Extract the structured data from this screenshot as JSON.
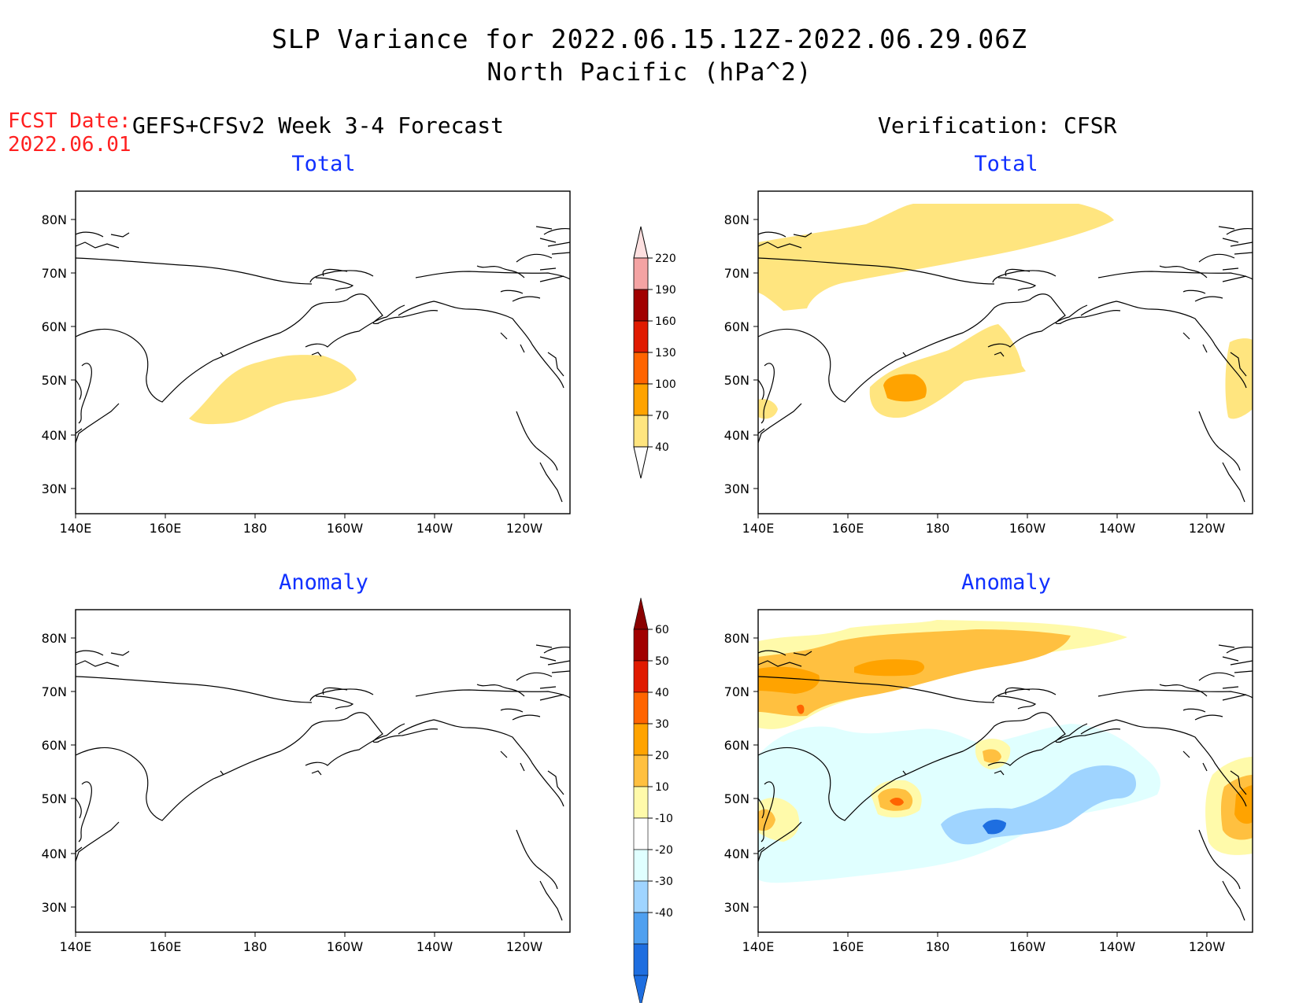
{
  "title": {
    "line1": "SLP Variance for 2022.06.15.12Z-2022.06.29.06Z",
    "line2": "North Pacific (hPa^2)"
  },
  "fcst": {
    "label": "FCST Date:",
    "date": "2022.06.01"
  },
  "forecast_header": "GEFS+CFSv2 Week 3-4 Forecast",
  "verification_header": "Verification: CFSR",
  "panels": {
    "fcst_total_title": "Total",
    "fcst_anom_title": "Anomaly",
    "ver_total_title": "Total",
    "ver_anom_title": "Anomaly"
  },
  "axes": {
    "lon_labels": [
      "140E",
      "160E",
      "180",
      "160W",
      "140W",
      "120W"
    ],
    "lat_labels": [
      "80N",
      "70N",
      "60N",
      "50N",
      "40N",
      "30N"
    ]
  },
  "colorbar_total": {
    "labels": [
      "220",
      "190",
      "160",
      "130",
      "100",
      "70",
      "40"
    ],
    "colors": [
      "#f4a3a3",
      "#a10000",
      "#e01a00",
      "#ff6400",
      "#ffa300",
      "#ffe57f"
    ]
  },
  "colorbar_anomaly": {
    "labels": [
      "60",
      "50",
      "40",
      "30",
      "20",
      "10",
      "-10",
      "-20",
      "-30",
      "-40"
    ],
    "colors": [
      "#a10000",
      "#e01a00",
      "#ff6400",
      "#ffa300",
      "#ffc040",
      "#fffaaa",
      "#ffffff",
      "#e0ffff",
      "#9fd4ff",
      "#4fa0f0",
      "#1e6ee0"
    ]
  }
}
